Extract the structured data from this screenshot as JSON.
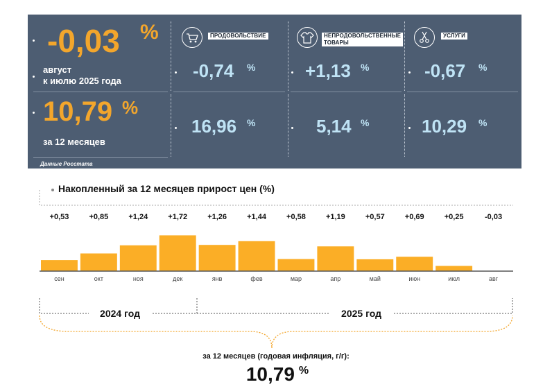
{
  "panel": {
    "headline_value": "-0,03",
    "headline_pct": "%",
    "headline_period_line1": "август",
    "headline_period_line2": "к июлю 2025 года",
    "annual_value": "10,79",
    "annual_pct": "%",
    "annual_period": "за 12 месяцев",
    "source": "Данные Росстата",
    "categories": [
      {
        "label": "ПРОДОВОЛЬСТВИЕ",
        "icon": "shopping-cart-icon",
        "monthly": "-0,74",
        "annual": "16,96",
        "pct": "%"
      },
      {
        "label": "НЕПРОДОВОЛЬСТВЕННЫЕ ТОВАРЫ",
        "label_line1": "НЕПРОДОВОЛЬСТВЕННЫЕ",
        "label_line2": "ТОВАРЫ",
        "icon": "clothing-icon",
        "monthly": "+1,13",
        "annual": "5,14",
        "pct": "%"
      },
      {
        "label": "УСЛУГИ",
        "icon": "scissors-icon",
        "monthly": "-0,67",
        "annual": "10,29",
        "pct": "%"
      }
    ],
    "colors": {
      "background": "#4d5d72",
      "accent": "#f3a62c",
      "value": "#bfe3f5"
    }
  },
  "chart_data": {
    "type": "bar",
    "title": "Накопленный за 12 месяцев прирост цен (%)",
    "categories": [
      "сен",
      "окт",
      "ноя",
      "дек",
      "янв",
      "фев",
      "мар",
      "апр",
      "май",
      "июн",
      "июл",
      "авг"
    ],
    "values": [
      0.53,
      0.85,
      1.24,
      1.72,
      1.26,
      1.44,
      0.58,
      1.19,
      0.57,
      0.69,
      0.25,
      -0.03
    ],
    "value_labels": [
      "+0,53",
      "+0,85",
      "+1,24",
      "+1,72",
      "+1,26",
      "+1,44",
      "+0,58",
      "+1,19",
      "+0,57",
      "+0,69",
      "+0,25",
      "-0,03"
    ],
    "xlabel": "",
    "ylabel": "",
    "ylim": [
      0,
      1.8
    ],
    "bar_color": "#fbae26",
    "grid": false
  },
  "years": {
    "y2024": "2024 год",
    "y2025": "2025 год"
  },
  "summary": {
    "caption": "за 12 месяцев (годовая инфляция, г/г):",
    "value": "10,79",
    "pct": "%"
  }
}
